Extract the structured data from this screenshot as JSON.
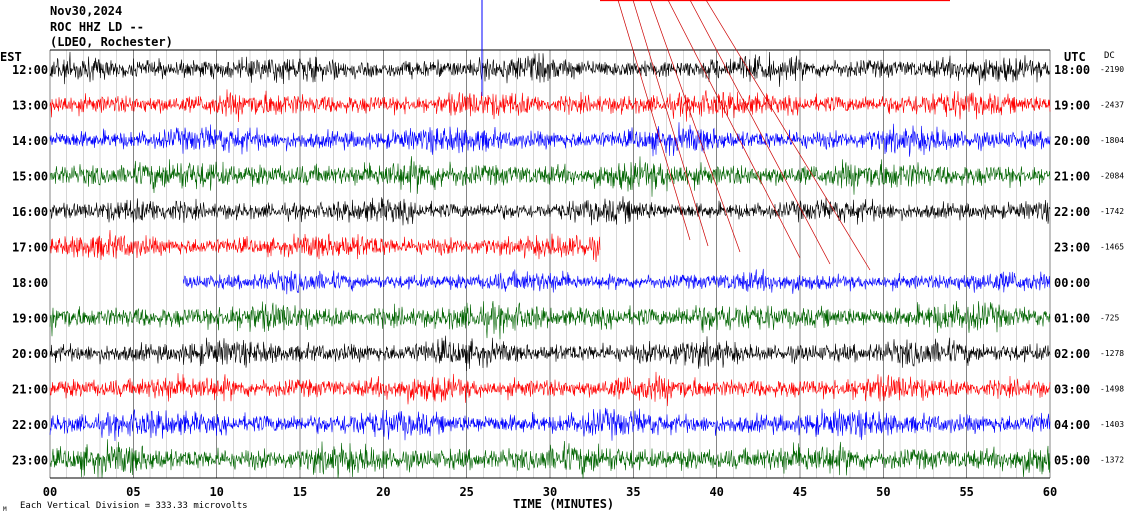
{
  "header": {
    "line1": "Nov30,2024",
    "line2": "ROC HHZ LD --",
    "line3": "(LDEO, Rochester)"
  },
  "labels": {
    "left_tz": "EST",
    "right_tz": "UTC",
    "dc": "DC",
    "xlabel": "TIME (MINUTES)",
    "footer": "Each Vertical Division =  333.33 microvolts",
    "corner_mark": "M"
  },
  "colors": {
    "background": "#ffffff",
    "text": "#000000",
    "black_trace": "#000000",
    "red_trace": "#ff0000",
    "blue_trace": "#0000ff",
    "green_trace": "#006400"
  },
  "chart_data": {
    "type": "line",
    "title": "",
    "xlabel": "TIME (MINUTES)",
    "ylabel": "",
    "xlim": [
      0,
      60
    ],
    "x_ticks": [
      "00",
      "05",
      "10",
      "15",
      "20",
      "25",
      "30",
      "35",
      "40",
      "45",
      "50",
      "55",
      "60"
    ],
    "minor_tick_step_minutes": 1,
    "grid": true,
    "series": [
      {
        "left": "12:00",
        "right": "18:00",
        "dc": "-2190",
        "color": "black",
        "amp": 1.0,
        "active": [
          0,
          60
        ]
      },
      {
        "left": "13:00",
        "right": "19:00",
        "dc": "-2437",
        "color": "red",
        "amp": 1.0,
        "active": [
          0,
          60
        ]
      },
      {
        "left": "14:00",
        "right": "20:00",
        "dc": "-1804",
        "color": "blue",
        "amp": 1.0,
        "active": [
          0,
          60
        ]
      },
      {
        "left": "15:00",
        "right": "21:00",
        "dc": "-2084",
        "color": "green",
        "amp": 1.15,
        "active": [
          0,
          60
        ]
      },
      {
        "left": "16:00",
        "right": "22:00",
        "dc": "-1742",
        "color": "black",
        "amp": 0.9,
        "active": [
          0,
          60
        ]
      },
      {
        "left": "17:00",
        "right": "23:00",
        "dc": "-1465",
        "color": "red",
        "amp": 0.95,
        "active": [
          0,
          33
        ]
      },
      {
        "left": "18:00",
        "right": "00:00",
        "dc": "",
        "color": "blue",
        "amp": 0.8,
        "active": [
          8,
          60
        ]
      },
      {
        "left": "19:00",
        "right": "01:00",
        "dc": "-725",
        "color": "green",
        "amp": 1.1,
        "active": [
          0,
          60
        ]
      },
      {
        "left": "20:00",
        "right": "02:00",
        "dc": "-1278",
        "color": "black",
        "amp": 1.0,
        "active": [
          0,
          60
        ]
      },
      {
        "left": "21:00",
        "right": "03:00",
        "dc": "-1498",
        "color": "red",
        "amp": 1.0,
        "active": [
          0,
          60
        ]
      },
      {
        "left": "22:00",
        "right": "04:00",
        "dc": "-1403",
        "color": "blue",
        "amp": 1.05,
        "active": [
          0,
          60
        ]
      },
      {
        "left": "23:00",
        "right": "05:00",
        "dc": "-1372",
        "color": "green",
        "amp": 1.15,
        "active": [
          0,
          60
        ]
      }
    ]
  }
}
